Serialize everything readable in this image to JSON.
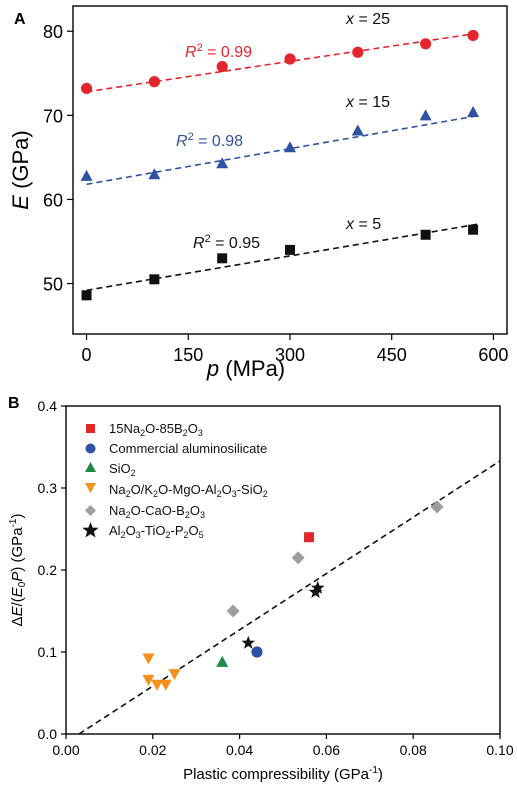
{
  "chart_data": [
    {
      "panel": "A",
      "type": "scatter",
      "xlabel_var": "p",
      "xlabel_unit": " (MPa)",
      "ylabel_var": "E",
      "ylabel_unit": " (GPa)",
      "xlim": [
        -20,
        620
      ],
      "ylim": [
        44,
        83
      ],
      "xticks": [
        0,
        150,
        300,
        450,
        600
      ],
      "yticks": [
        50,
        60,
        70,
        80
      ],
      "series": [
        {
          "label": "x = 25",
          "color": "#e3262c",
          "marker": "circle",
          "x": [
            0,
            100,
            200,
            300,
            400,
            500,
            570
          ],
          "y": [
            73.2,
            74.0,
            75.8,
            76.7,
            77.5,
            78.5,
            79.5
          ],
          "fit": [
            72.8,
            79.8
          ],
          "r2": "0.99"
        },
        {
          "label": "x = 15",
          "color": "#2d52a3",
          "marker": "triangle",
          "x": [
            0,
            100,
            200,
            300,
            400,
            500,
            570
          ],
          "y": [
            62.8,
            63.0,
            64.3,
            66.2,
            68.2,
            70.0,
            70.4
          ],
          "fit": [
            61.8,
            70.0
          ],
          "r2": "0.98"
        },
        {
          "label": "x = 5",
          "color": "#111111",
          "marker": "square",
          "x": [
            0,
            100,
            200,
            300,
            500,
            570
          ],
          "y": [
            48.6,
            50.5,
            53.0,
            54.0,
            55.8,
            56.4
          ],
          "fit": [
            49.2,
            57.1
          ],
          "r2": "0.95"
        }
      ]
    },
    {
      "panel": "B",
      "type": "scatter",
      "xlabel": "Plastic compressibility (GPa",
      "xlabel_sup": "-1",
      "xlabel_end": ")",
      "ylabel": "ΔE/(E0P) (GPa-1)",
      "xlim": [
        0,
        0.1
      ],
      "ylim": [
        0,
        0.4
      ],
      "xticks": [
        0.0,
        0.02,
        0.04,
        0.06,
        0.08,
        0.1
      ],
      "yticks": [
        0.0,
        0.1,
        0.2,
        0.3,
        0.4
      ],
      "xticklabels": [
        "0.00",
        "0.02",
        "0.04",
        "0.06",
        "0.08",
        "0.10"
      ],
      "yticklabels": [
        "0.0",
        "0.1",
        "0.2",
        "0.3",
        "0.4"
      ],
      "fit": {
        "x": [
          0.003,
          0.1
        ],
        "y": [
          0.0,
          0.333
        ]
      },
      "legend_position": "top-left",
      "series": [
        {
          "key": "nab",
          "color": "#e3262c",
          "marker": "square",
          "x": [
            0.056
          ],
          "y": [
            0.24
          ]
        },
        {
          "key": "alu",
          "color": "#2d52a3",
          "marker": "circle",
          "x": [
            0.044
          ],
          "y": [
            0.1
          ]
        },
        {
          "key": "sio2",
          "color": "#1f8a45",
          "marker": "triangle",
          "x": [
            0.036
          ],
          "y": [
            0.088
          ]
        },
        {
          "key": "nakmg",
          "color": "#f5901e",
          "marker": "triangle-down",
          "x": [
            0.019,
            0.019,
            0.021,
            0.023,
            0.025
          ],
          "y": [
            0.092,
            0.066,
            0.06,
            0.06,
            0.073
          ]
        },
        {
          "key": "nacab",
          "color": "#9e9e9e",
          "marker": "diamond",
          "x": [
            0.0385,
            0.0535,
            0.0855
          ],
          "y": [
            0.15,
            0.215,
            0.277
          ]
        },
        {
          "key": "atp",
          "color": "#111111",
          "marker": "star",
          "x": [
            0.042,
            0.0575,
            0.058
          ],
          "y": [
            0.111,
            0.173,
            0.178
          ]
        }
      ]
    }
  ]
}
